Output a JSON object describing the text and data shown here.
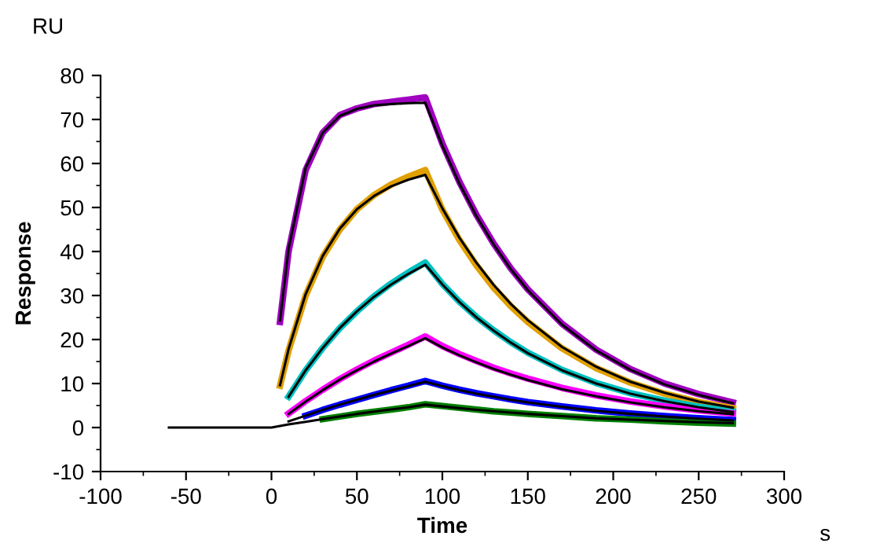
{
  "chart_data": {
    "type": "line",
    "xlabel": "Time",
    "ylabel": "Response",
    "annotations": [
      "RU",
      "s"
    ],
    "xlim": [
      -100,
      300
    ],
    "xticks": [
      -100,
      -50,
      0,
      50,
      100,
      150,
      200,
      250,
      300
    ],
    "ylim": [
      -10,
      80
    ],
    "yticks": [
      -10,
      0,
      10,
      20,
      30,
      40,
      50,
      60,
      70,
      80
    ],
    "grid": false,
    "marker": "none",
    "line_style": "solid",
    "series": [
      {
        "color": "#a000c0",
        "x": [
          5,
          10,
          20,
          30,
          40,
          50,
          60,
          70,
          80,
          90,
          100,
          110,
          120,
          130,
          140,
          150,
          170,
          190,
          210,
          230,
          250,
          270
        ],
        "values": [
          24,
          40,
          58.5,
          67,
          71,
          72.5,
          73.5,
          74,
          74.5,
          75,
          64.5,
          55.8,
          48.3,
          41.8,
          36.2,
          31.4,
          23.6,
          17.7,
          13.3,
          10,
          7.6,
          5.7
        ]
      },
      {
        "color": "#e0a000",
        "x": [
          5,
          10,
          20,
          30,
          40,
          50,
          60,
          70,
          80,
          90,
          100,
          110,
          120,
          130,
          140,
          150,
          170,
          190,
          210,
          230,
          250,
          270
        ],
        "values": [
          9.5,
          17.5,
          30,
          38.8,
          45,
          49.6,
          52.8,
          55.2,
          57,
          58.5,
          49.5,
          42.6,
          36.8,
          31.8,
          27.6,
          24,
          18,
          13.5,
          10.2,
          7.7,
          5.8,
          4.4
        ]
      },
      {
        "color": "#00c0c0",
        "x": [
          10,
          20,
          30,
          40,
          50,
          60,
          70,
          80,
          90,
          100,
          110,
          120,
          130,
          140,
          150,
          170,
          190,
          210,
          230,
          250,
          270
        ],
        "values": [
          7,
          13,
          18.1,
          22.6,
          26.4,
          29.8,
          32.7,
          35.2,
          37.5,
          32.6,
          28.6,
          25.1,
          22.1,
          19.4,
          17,
          13.1,
          10.1,
          7.8,
          6.1,
          4.7,
          3.6
        ]
      },
      {
        "color": "#ff00ff",
        "x": [
          10,
          20,
          30,
          40,
          50,
          60,
          70,
          80,
          90,
          100,
          110,
          120,
          130,
          140,
          150,
          170,
          190,
          210,
          230,
          250,
          270
        ],
        "values": [
          3.2,
          6,
          8.6,
          11,
          13.2,
          15.2,
          17,
          18.8,
          20.7,
          18.5,
          16.7,
          15.1,
          13.6,
          12.3,
          11.1,
          9,
          7.3,
          5.9,
          4.8,
          3.9,
          3.2
        ]
      },
      {
        "color": "#0000ff",
        "x": [
          20,
          30,
          40,
          50,
          60,
          70,
          80,
          90,
          100,
          110,
          120,
          130,
          140,
          150,
          170,
          190,
          210,
          230,
          250,
          270
        ],
        "values": [
          2.7,
          4,
          5.2,
          6.3,
          7.4,
          8.5,
          9.5,
          10.6,
          9.5,
          8.6,
          7.8,
          7.1,
          6.4,
          5.8,
          4.8,
          3.9,
          3.2,
          2.6,
          2.1,
          1.7
        ]
      },
      {
        "color": "#008000",
        "x": [
          30,
          40,
          50,
          60,
          70,
          80,
          90,
          100,
          110,
          120,
          130,
          140,
          150,
          170,
          190,
          210,
          230,
          250,
          270
        ],
        "values": [
          1.9,
          2.5,
          3.1,
          3.6,
          4.1,
          4.6,
          5.3,
          4.9,
          4.5,
          4.1,
          3.7,
          3.4,
          3.1,
          2.6,
          2.1,
          1.8,
          1.4,
          1.1,
          0.9
        ]
      },
      {
        "color": "#000000",
        "x": [
          5,
          10,
          20,
          30,
          40,
          50,
          60,
          70,
          80,
          90,
          100,
          110,
          120,
          130,
          140,
          150,
          170,
          190,
          210,
          230,
          250,
          270
        ],
        "values": [
          24.3,
          40.6,
          59,
          67,
          70.8,
          72.4,
          73.2,
          73.5,
          73.7,
          73.8,
          64,
          55.4,
          48,
          41.6,
          36,
          31.2,
          23.4,
          17.5,
          13.1,
          9.8,
          7.4,
          5.5
        ]
      },
      {
        "color": "#000000",
        "x": [
          5,
          10,
          20,
          30,
          40,
          50,
          60,
          70,
          80,
          90,
          100,
          110,
          120,
          130,
          140,
          150,
          170,
          190,
          210,
          230,
          250,
          270
        ],
        "values": [
          9.6,
          17.8,
          30.3,
          39,
          45.2,
          49.6,
          52.6,
          54.8,
          56.3,
          57.4,
          49.8,
          43.1,
          37.4,
          32.4,
          28.1,
          24.4,
          18.3,
          13.8,
          10.4,
          7.9,
          5.9,
          4.5
        ]
      },
      {
        "color": "#000000",
        "x": [
          10,
          20,
          30,
          40,
          50,
          60,
          70,
          80,
          90,
          100,
          110,
          120,
          130,
          140,
          150,
          170,
          190,
          210,
          230,
          250,
          270
        ],
        "values": [
          7,
          13,
          18.1,
          22.6,
          26.4,
          29.7,
          32.5,
          34.9,
          37,
          32.5,
          28.5,
          25,
          22,
          19.3,
          16.9,
          13,
          10,
          7.7,
          6,
          4.6,
          3.5
        ]
      },
      {
        "color": "#000000",
        "x": [
          10,
          20,
          30,
          40,
          50,
          60,
          70,
          80,
          90,
          100,
          110,
          120,
          130,
          140,
          150,
          170,
          190,
          210,
          230,
          250,
          270
        ],
        "values": [
          3.1,
          5.9,
          8.5,
          10.9,
          13,
          15,
          16.8,
          18.5,
          20.3,
          18.2,
          16.4,
          14.8,
          13.3,
          12,
          10.8,
          8.7,
          7.1,
          5.7,
          4.6,
          3.7,
          3
        ]
      },
      {
        "color": "#000000",
        "x": [
          10,
          20,
          30,
          40,
          50,
          60,
          70,
          80,
          90,
          100,
          110,
          120,
          130,
          140,
          150,
          170,
          190,
          210,
          230,
          250,
          270
        ],
        "values": [
          1.4,
          2.7,
          4,
          5.2,
          6.3,
          7.4,
          8.4,
          9.4,
          10.4,
          9.4,
          8.5,
          7.7,
          7,
          6.3,
          5.7,
          4.7,
          3.8,
          3.1,
          2.5,
          2,
          1.6
        ]
      },
      {
        "color": "#000000",
        "x": [
          -60,
          -30,
          0,
          10,
          20,
          30,
          40,
          50,
          60,
          70,
          80,
          90,
          100,
          110,
          120,
          130,
          140,
          150,
          170,
          190,
          210,
          230,
          250,
          270
        ],
        "values": [
          0,
          0,
          0,
          0.7,
          1.3,
          1.9,
          2.5,
          3.1,
          3.6,
          4.1,
          4.6,
          5.2,
          4.8,
          4.4,
          4,
          3.7,
          3.4,
          3.1,
          2.6,
          2.1,
          1.8,
          1.5,
          1.2,
          1
        ]
      }
    ]
  }
}
